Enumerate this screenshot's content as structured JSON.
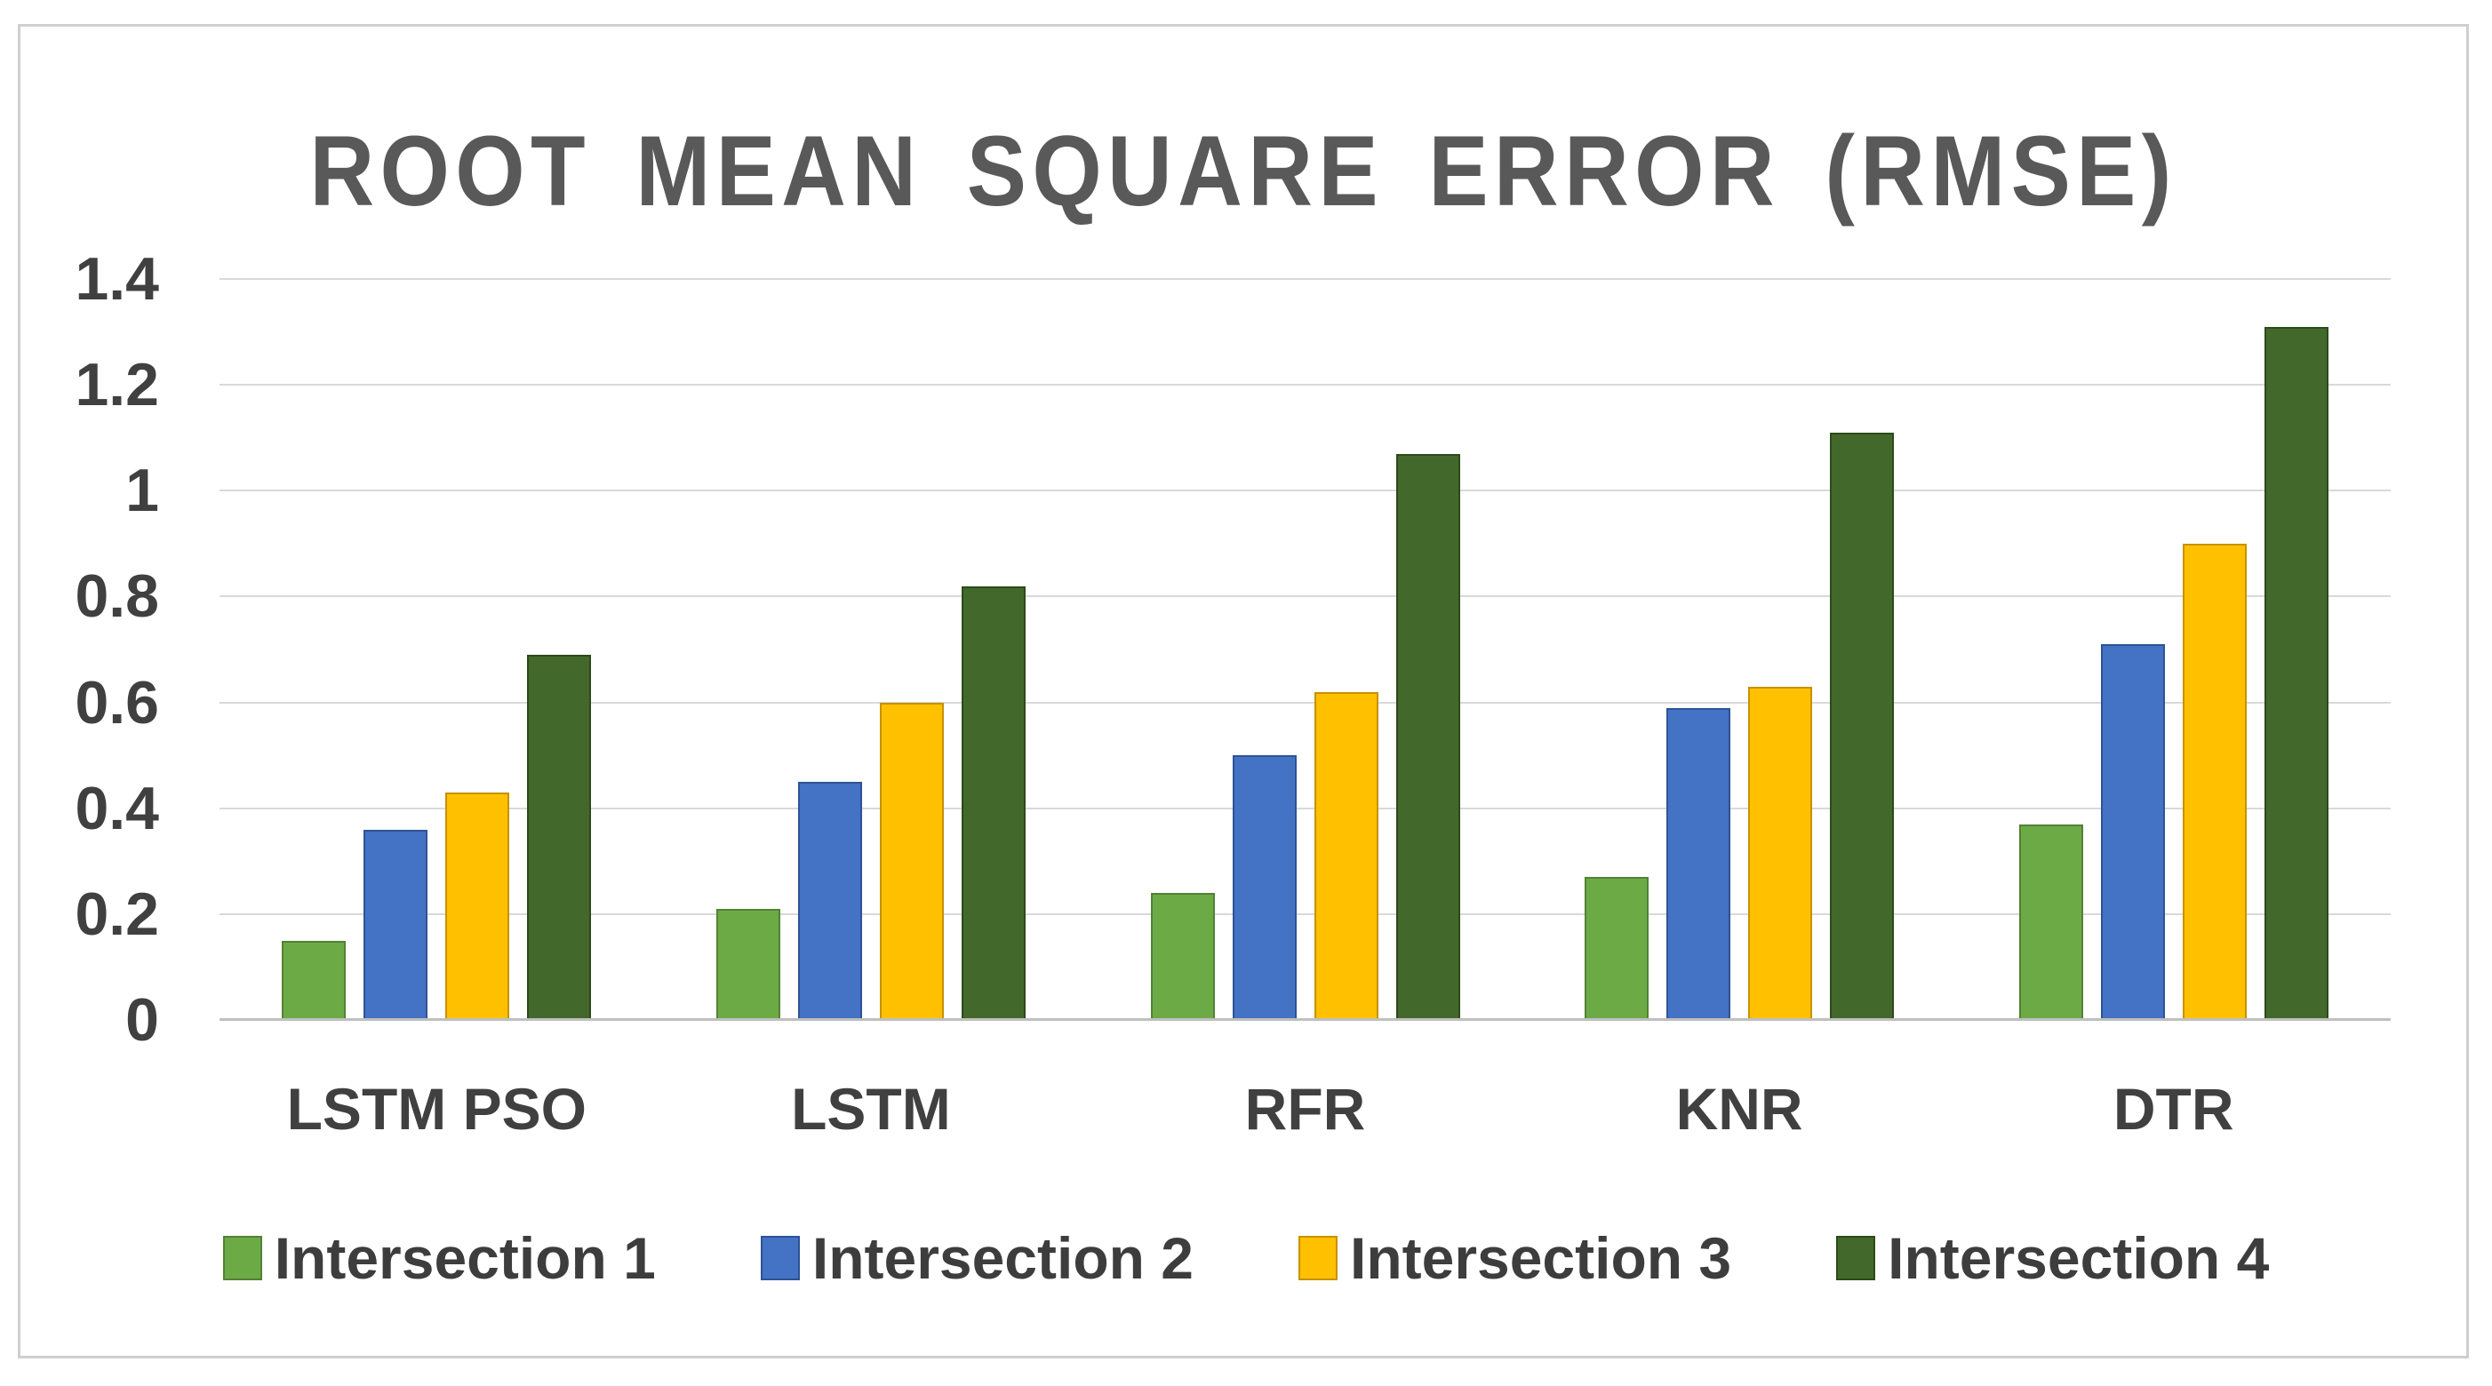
{
  "chart_data": {
    "type": "bar",
    "title": "ROOT MEAN SQUARE ERROR (RMSE)",
    "xlabel": "",
    "ylabel": "",
    "ylim": [
      0,
      1.4
    ],
    "ytick_labels": [
      "1.4",
      "1.2",
      "1",
      "0.8",
      "0.6",
      "0.4",
      "0.2",
      "0"
    ],
    "grid": "horizontal",
    "legend_position": "bottom",
    "categories": [
      "LSTM PSO",
      "LSTM",
      "RFR",
      "KNR",
      "DTR"
    ],
    "series": [
      {
        "name": "Intersection 1",
        "color": "#6CAA46",
        "border_color": "#538135",
        "values": [
          0.15,
          0.21,
          0.24,
          0.27,
          0.37
        ]
      },
      {
        "name": "Intersection 2",
        "color": "#4472C4",
        "border_color": "#2E5395",
        "values": [
          0.36,
          0.45,
          0.5,
          0.59,
          0.71
        ]
      },
      {
        "name": "Intersection 3",
        "color": "#FFC000",
        "border_color": "#C79100",
        "values": [
          0.43,
          0.6,
          0.62,
          0.63,
          0.9
        ]
      },
      {
        "name": "Intersection 4",
        "color": "#43682B",
        "border_color": "#2D4A1A",
        "values": [
          0.69,
          0.82,
          1.07,
          1.11,
          1.31
        ]
      }
    ]
  },
  "style_colors": {
    "title_color": "#595959",
    "axis_label_color": "#404040",
    "gridline_color": "#D9D9D9",
    "axis_line_color": "#BFBFBF",
    "frame_border_color": "#D0CECE"
  }
}
